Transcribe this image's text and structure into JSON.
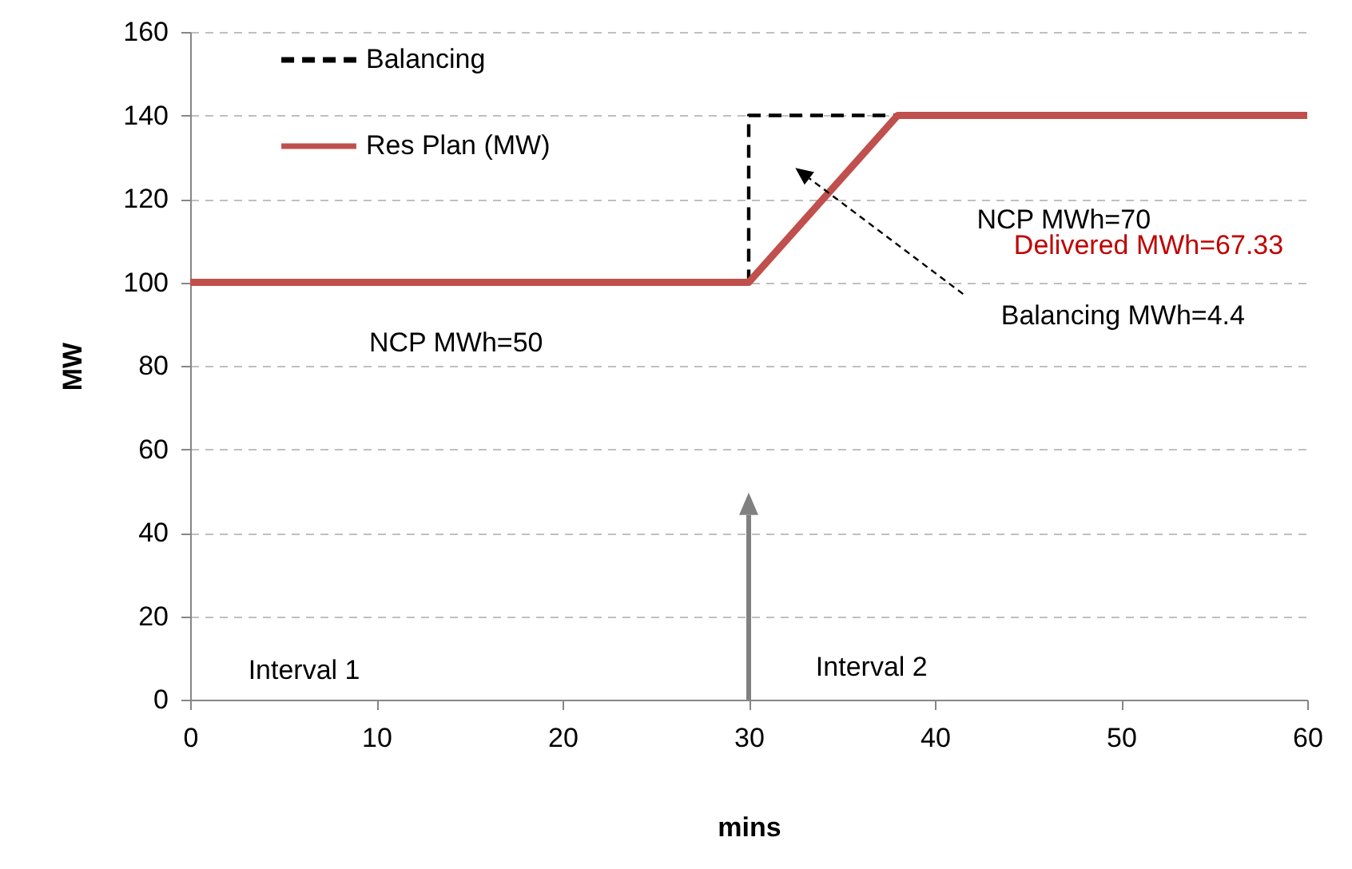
{
  "chart_data": {
    "type": "line",
    "xlabel": "mins",
    "ylabel": "MW",
    "series": [
      {
        "name": "Balancing",
        "color": "#000000",
        "line_style": "dashed",
        "x": [
          30,
          30,
          38
        ],
        "values": [
          100,
          140,
          140
        ]
      },
      {
        "name": "Res Plan (MW)",
        "color": "#c0504d",
        "line_style": "solid",
        "x": [
          0,
          30,
          38,
          60
        ],
        "values": [
          100,
          100,
          140,
          140
        ]
      }
    ],
    "xlim": [
      0,
      60
    ],
    "xticks": [
      0,
      10,
      20,
      30,
      40,
      50,
      60
    ],
    "ylim": [
      0,
      160
    ],
    "yticks": [
      0,
      20,
      40,
      60,
      80,
      100,
      120,
      140,
      160
    ],
    "grid": "y",
    "legend": "top left",
    "marker": "none",
    "ref_lines": [
      {
        "axis": "x",
        "value": 30,
        "color": "#808080"
      }
    ],
    "annotations": [
      "NCP MWh=50",
      "NCP MWh=70",
      "Delivered MWh=67.33",
      "Balancing MWh=4.4",
      "Interval 1",
      "Interval 2"
    ]
  }
}
